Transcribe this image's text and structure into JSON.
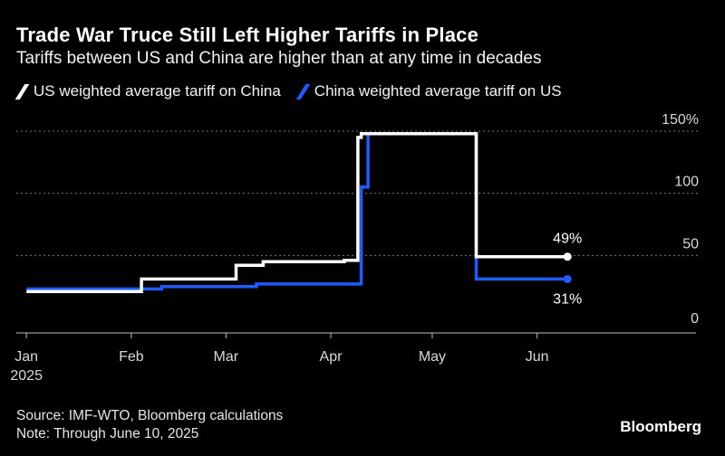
{
  "header": {
    "title": "Trade War Truce Still Left Higher Tariffs in Place",
    "subtitle": "Tariffs between US and China are higher than at any time in decades"
  },
  "footer": {
    "source": "Source: IMF-WTO, Bloomberg calculations",
    "note": "Note: Through June 10, 2025",
    "brand": "Bloomberg"
  },
  "colors": {
    "background": "#000000",
    "us_series": "#ffffff",
    "china_series": "#1f5cff",
    "grid": "#777777"
  },
  "chart_data": {
    "type": "line",
    "step": true,
    "title": "Trade War Truce Still Left Higher Tariffs in Place",
    "subtitle": "Tariffs between US and China are higher than at any time in decades",
    "y_ticks": [
      "0",
      "50",
      "100",
      "150%"
    ],
    "y_tick_values": [
      0,
      50,
      100,
      150
    ],
    "ylim": [
      0,
      150
    ],
    "y_axis_side": "right",
    "x_ticks": [
      {
        "date": "2025-01-01",
        "label": "Jan",
        "sublabel": "2025"
      },
      {
        "date": "2025-02-01",
        "label": "Feb",
        "sublabel": ""
      },
      {
        "date": "2025-03-01",
        "label": "Mar",
        "sublabel": ""
      },
      {
        "date": "2025-04-01",
        "label": "Apr",
        "sublabel": ""
      },
      {
        "date": "2025-05-01",
        "label": "May",
        "sublabel": ""
      },
      {
        "date": "2025-06-01",
        "label": "Jun",
        "sublabel": ""
      }
    ],
    "xlim": [
      "2024-12-29",
      "2025-07-18"
    ],
    "grid": "horizontal dotted",
    "legend_position": "top-left",
    "series": [
      {
        "name": "US weighted average tariff on China",
        "color": "#ffffff",
        "end_label": "49%",
        "points": [
          {
            "date": "2025-01-01",
            "value": 21
          },
          {
            "date": "2025-02-04",
            "value": 21
          },
          {
            "date": "2025-02-04",
            "value": 31
          },
          {
            "date": "2025-03-04",
            "value": 31
          },
          {
            "date": "2025-03-04",
            "value": 42
          },
          {
            "date": "2025-03-12",
            "value": 42
          },
          {
            "date": "2025-03-12",
            "value": 45
          },
          {
            "date": "2025-04-05",
            "value": 45
          },
          {
            "date": "2025-04-05",
            "value": 46
          },
          {
            "date": "2025-04-09",
            "value": 46
          },
          {
            "date": "2025-04-09",
            "value": 145
          },
          {
            "date": "2025-04-10",
            "value": 145
          },
          {
            "date": "2025-04-10",
            "value": 148
          },
          {
            "date": "2025-05-14",
            "value": 148
          },
          {
            "date": "2025-05-14",
            "value": 49
          },
          {
            "date": "2025-06-10",
            "value": 49
          }
        ]
      },
      {
        "name": "China weighted average tariff on US",
        "color": "#1f5cff",
        "end_label": "31%",
        "points": [
          {
            "date": "2025-01-01",
            "value": 23
          },
          {
            "date": "2025-02-10",
            "value": 23
          },
          {
            "date": "2025-02-10",
            "value": 25
          },
          {
            "date": "2025-03-10",
            "value": 25
          },
          {
            "date": "2025-03-10",
            "value": 27
          },
          {
            "date": "2025-04-10",
            "value": 27
          },
          {
            "date": "2025-04-10",
            "value": 105
          },
          {
            "date": "2025-04-12",
            "value": 105
          },
          {
            "date": "2025-04-12",
            "value": 148
          },
          {
            "date": "2025-05-14",
            "value": 148
          },
          {
            "date": "2025-05-14",
            "value": 31
          },
          {
            "date": "2025-06-10",
            "value": 31
          }
        ]
      }
    ]
  }
}
